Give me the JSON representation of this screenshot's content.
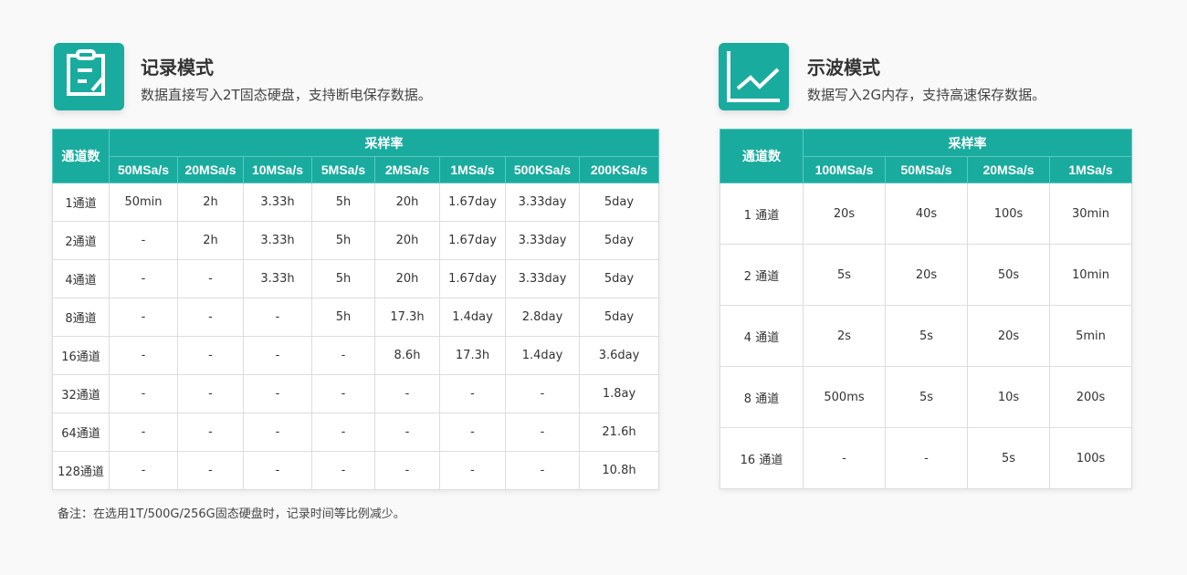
{
  "record": {
    "title": "记录模式",
    "subtitle": "数据直接写入2T固态硬盘，支持断电保存数据。",
    "icon": "clipboard-edit-icon",
    "channel_header": "通道数",
    "rate_header": "采样率",
    "rates": [
      "50MSa/s",
      "20MSa/s",
      "10MSa/s",
      "5MSa/s",
      "2MSa/s",
      "1MSa/s",
      "500KSa/s",
      "200KSa/s"
    ],
    "rows": [
      {
        "ch": "1通道",
        "v": [
          "50min",
          "2h",
          "3.33h",
          "5h",
          "20h",
          "1.67day",
          "3.33day",
          "5day"
        ]
      },
      {
        "ch": "2通道",
        "v": [
          "-",
          "2h",
          "3.33h",
          "5h",
          "20h",
          "1.67day",
          "3.33day",
          "5day"
        ]
      },
      {
        "ch": "4通道",
        "v": [
          "-",
          "-",
          "3.33h",
          "5h",
          "20h",
          "1.67day",
          "3.33day",
          "5day"
        ]
      },
      {
        "ch": "8通道",
        "v": [
          "-",
          "-",
          "-",
          "5h",
          "17.3h",
          "1.4day",
          "2.8day",
          "5day"
        ]
      },
      {
        "ch": "16通道",
        "v": [
          "-",
          "-",
          "-",
          "-",
          "8.6h",
          "17.3h",
          "1.4day",
          "3.6day"
        ]
      },
      {
        "ch": "32通道",
        "v": [
          "-",
          "-",
          "-",
          "-",
          "-",
          "-",
          "-",
          "1.8ay"
        ]
      },
      {
        "ch": "64通道",
        "v": [
          "-",
          "-",
          "-",
          "-",
          "-",
          "-",
          "-",
          "21.6h"
        ]
      },
      {
        "ch": "128通道",
        "v": [
          "-",
          "-",
          "-",
          "-",
          "-",
          "-",
          "-",
          "10.8h"
        ]
      }
    ],
    "note": "备注：在选用1T/500G/256G固态硬盘时，记录时间等比例减少。"
  },
  "scope": {
    "title": "示波模式",
    "subtitle": "数据写入2G内存，支持高速保存数据。",
    "icon": "line-chart-icon",
    "channel_header": "通道数",
    "rate_header": "采样率",
    "rates": [
      "100MSa/s",
      "50MSa/s",
      "20MSa/s",
      "1MSa/s"
    ],
    "rows": [
      {
        "ch": "1 通道",
        "v": [
          "20s",
          "40s",
          "100s",
          "30min"
        ]
      },
      {
        "ch": "2 通道",
        "v": [
          "5s",
          "20s",
          "50s",
          "10min"
        ]
      },
      {
        "ch": "4 通道",
        "v": [
          "2s",
          "5s",
          "20s",
          "5min"
        ]
      },
      {
        "ch": "8 通道",
        "v": [
          "500ms",
          "5s",
          "10s",
          "200s"
        ]
      },
      {
        "ch": "16 通道",
        "v": [
          "-",
          "-",
          "5s",
          "100s"
        ]
      }
    ]
  },
  "accent": "#1aab9f"
}
